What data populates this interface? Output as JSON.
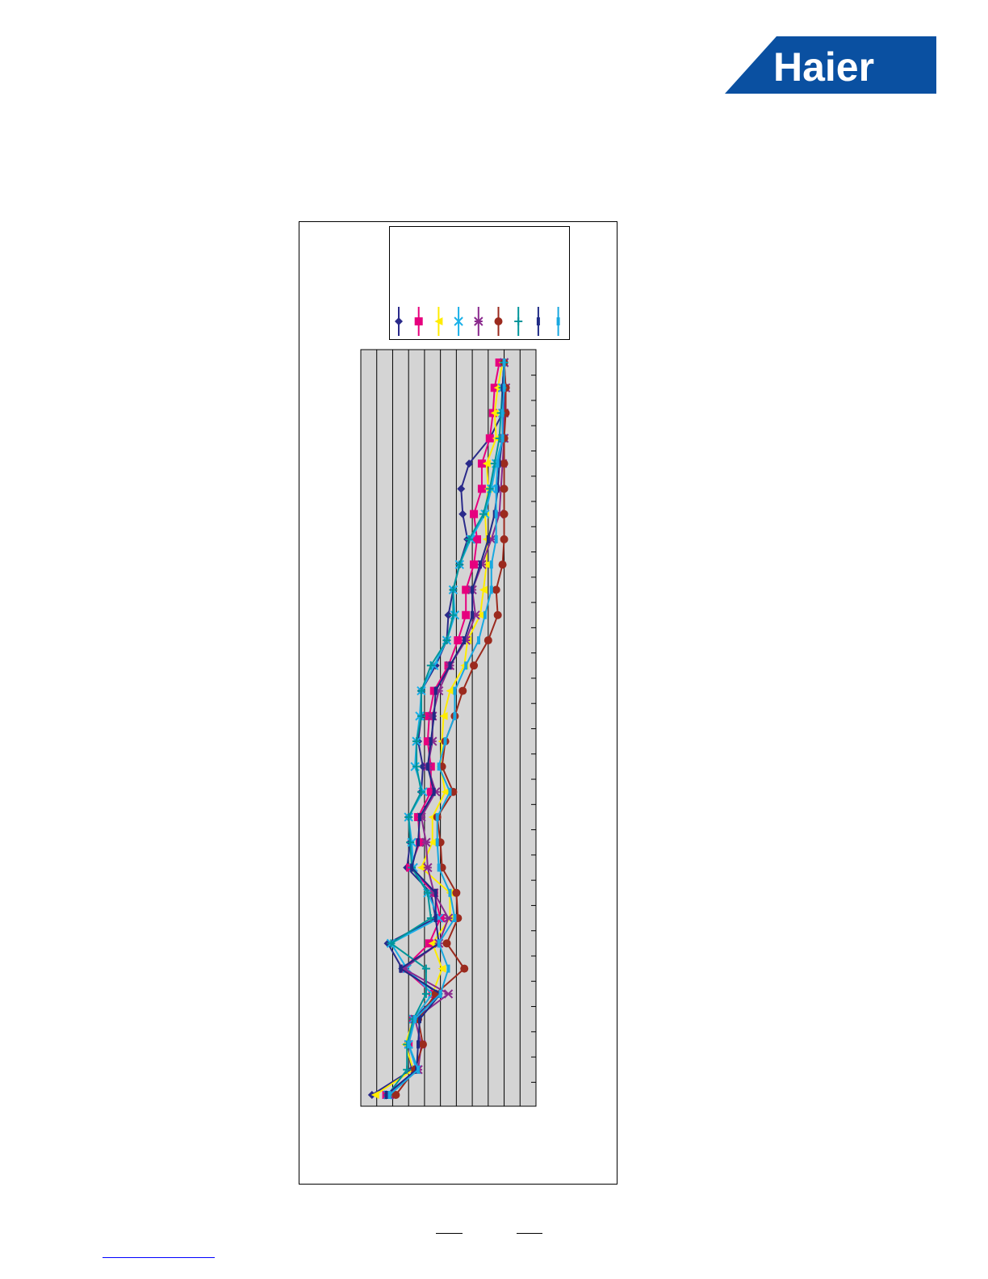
{
  "logo": {
    "text": "Haier",
    "color": "#0a50a1"
  },
  "chart_data": {
    "type": "line",
    "orientation": "horizontal-values-vertical-categories",
    "title": "",
    "xlabel": "",
    "ylabel": "",
    "grid": true,
    "legend_placement": "top",
    "plot_background": "#d4d4d4",
    "value_range": [
      0,
      11
    ],
    "category_count": 30,
    "series": [
      {
        "color": "#2a2a8a",
        "marker": "diamond",
        "values": [
          9.0,
          8.9,
          8.9,
          8.1,
          6.8,
          6.3,
          6.4,
          6.7,
          6.2,
          5.8,
          5.5,
          5.4,
          4.7,
          3.8,
          3.8,
          3.6,
          3.9,
          3.8,
          3.0,
          3.1,
          2.9,
          4.4,
          4.7,
          1.7,
          2.6,
          4.9,
          3.3,
          2.9,
          3.2,
          0.7
        ]
      },
      {
        "color": "#e6007e",
        "marker": "square",
        "values": [
          8.7,
          8.4,
          8.3,
          8.1,
          7.6,
          7.6,
          7.1,
          7.3,
          7.1,
          6.6,
          6.6,
          6.1,
          5.5,
          4.6,
          4.3,
          4.2,
          4.4,
          4.4,
          3.6,
          3.7,
          3.1,
          4.6,
          5.0,
          4.3,
          2.7,
          4.5,
          3.3,
          3.0,
          3.5,
          1.6
        ]
      },
      {
        "color": "#ffec00",
        "marker": "triangle",
        "values": [
          8.9,
          8.6,
          8.4,
          8.5,
          7.9,
          8.0,
          7.8,
          7.9,
          7.9,
          7.7,
          7.5,
          6.7,
          6.5,
          5.6,
          5.2,
          5.1,
          5.0,
          5.3,
          4.5,
          4.5,
          3.8,
          5.6,
          5.6,
          4.5,
          5.1,
          4.5,
          3.3,
          2.8,
          3.3,
          0.9
        ]
      },
      {
        "color": "#1ab0e8",
        "marker": "x",
        "values": [
          9.0,
          8.9,
          8.9,
          8.9,
          8.5,
          8.2,
          7.8,
          6.9,
          6.2,
          5.8,
          5.9,
          5.4,
          4.6,
          3.8,
          3.7,
          3.5,
          3.4,
          3.9,
          3.0,
          3.2,
          3.3,
          4.2,
          4.9,
          1.9,
          2.9,
          4.5,
          3.3,
          3.0,
          3.5,
          1.7
        ]
      },
      {
        "color": "#8b2a8e",
        "marker": "asterisk",
        "values": [
          9.0,
          9.1,
          9.0,
          9.0,
          8.9,
          8.8,
          8.7,
          8.2,
          7.6,
          7.0,
          7.2,
          6.6,
          5.6,
          4.9,
          4.5,
          4.5,
          4.2,
          4.7,
          3.8,
          4.1,
          4.2,
          4.6,
          5.5,
          4.9,
          2.7,
          5.5,
          3.4,
          3.8,
          3.6,
          1.8
        ]
      },
      {
        "color": "#9b2a1e",
        "marker": "circle",
        "values": [
          9.0,
          9.1,
          9.1,
          9.0,
          9.0,
          9.0,
          9.0,
          9.0,
          8.9,
          8.5,
          8.6,
          8.0,
          7.1,
          6.4,
          5.9,
          5.3,
          5.1,
          5.8,
          4.8,
          5.0,
          5.1,
          6.0,
          6.1,
          5.4,
          6.5,
          4.7,
          3.6,
          3.9,
          3.4,
          2.2
        ]
      },
      {
        "color": "#00959a",
        "marker": "plus",
        "values": [
          9.0,
          8.9,
          8.8,
          8.7,
          8.4,
          8.1,
          7.7,
          6.8,
          6.2,
          5.8,
          5.8,
          5.4,
          4.4,
          3.8,
          3.8,
          3.5,
          3.5,
          3.8,
          3.0,
          3.1,
          3.2,
          4.2,
          4.4,
          1.9,
          4.1,
          4.1,
          3.3,
          2.9,
          2.9,
          1.7
        ]
      },
      {
        "color": "#1f2a85",
        "marker": "bar",
        "values": [
          9.0,
          8.9,
          8.9,
          8.9,
          8.7,
          8.6,
          8.4,
          8.0,
          7.5,
          7.0,
          7.0,
          6.5,
          5.6,
          4.7,
          4.6,
          4.4,
          4.2,
          4.6,
          3.7,
          3.6,
          3.2,
          4.7,
          4.7,
          4.9,
          2.5,
          5.0,
          3.7,
          3.6,
          3.5,
          1.6
        ]
      },
      {
        "color": "#18a8e0",
        "marker": "bar",
        "values": [
          9.0,
          9.0,
          8.9,
          8.9,
          8.6,
          8.5,
          8.5,
          8.5,
          8.2,
          8.2,
          7.8,
          7.4,
          6.6,
          5.9,
          5.9,
          5.3,
          4.9,
          5.6,
          4.8,
          4.8,
          4.9,
          5.6,
          5.9,
          4.9,
          5.5,
          5.0,
          3.4,
          3.0,
          3.6,
          1.8
        ]
      }
    ]
  }
}
